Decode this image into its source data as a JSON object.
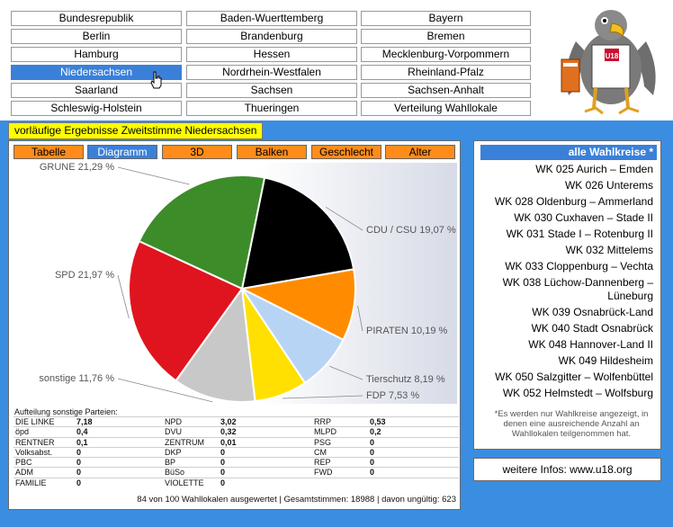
{
  "nav": {
    "row1": [
      "Bundesrepublik",
      "Baden-Wuerttemberg",
      "Bayern"
    ],
    "row2": [
      "Berlin",
      "Brandenburg",
      "Bremen"
    ],
    "row3": [
      "Hamburg",
      "Hessen",
      "Mecklenburg-Vorpommern"
    ],
    "row4": [
      "Niedersachsen",
      "Nordrhein-Westfalen",
      "Rheinland-Pfalz"
    ],
    "row5": [
      "Saarland",
      "Sachsen",
      "Sachsen-Anhalt"
    ],
    "row6": [
      "Schleswig-Holstein",
      "Thueringen",
      "Verteilung Wahllokale"
    ],
    "active": "Niedersachsen"
  },
  "mascot": {
    "badge": "U18"
  },
  "title": "vorläufige Ergebnisse Zweitstimme Niedersachsen",
  "tabs": [
    "Tabelle",
    "Diagramm",
    "3D",
    "Balken",
    "Geschlecht",
    "Alter"
  ],
  "active_tab": "Diagramm",
  "chart_data": {
    "type": "pie",
    "slices": [
      {
        "label": "CDU / CSU 19,07 %",
        "value": 19.07,
        "color": "#000000"
      },
      {
        "label": "PIRATEN 10,19 %",
        "value": 10.19,
        "color": "#ff8c00"
      },
      {
        "label": "Tierschutz 8,19 %",
        "value": 8.19,
        "color": "#b8d4f5"
      },
      {
        "label": "FDP 7,53 %",
        "value": 7.53,
        "color": "#ffe000"
      },
      {
        "label": "sonstige 11,76 %",
        "value": 11.76,
        "color": "#c8c8c8"
      },
      {
        "label": "SPD 21,97 %",
        "value": 21.97,
        "color": "#e0141e"
      },
      {
        "label": "GRÜNE 21,29 %",
        "value": 21.29,
        "color": "#3d8c2a"
      }
    ]
  },
  "others": {
    "heading": "Aufteilung sonstige Parteien:",
    "columns": [
      [
        [
          "DIE LINKE",
          "7,18"
        ],
        [
          "öpd",
          "0,4"
        ],
        [
          "RENTNER",
          "0,1"
        ],
        [
          "Volksabst.",
          "0"
        ],
        [
          "PBC",
          "0"
        ],
        [
          "ADM",
          "0"
        ],
        [
          "FAMILIE",
          "0"
        ]
      ],
      [
        [
          "NPD",
          "3,02"
        ],
        [
          "DVU",
          "0,32"
        ],
        [
          "ZENTRUM",
          "0,01"
        ],
        [
          "DKP",
          "0"
        ],
        [
          "BP",
          "0"
        ],
        [
          "BüSo",
          "0"
        ],
        [
          "VIOLETTE",
          "0"
        ]
      ],
      [
        [
          "RRP",
          "0,53"
        ],
        [
          "MLPD",
          "0,2"
        ],
        [
          "PSG",
          "0"
        ],
        [
          "CM",
          "0"
        ],
        [
          "REP",
          "0"
        ],
        [
          "FWD",
          "0"
        ]
      ]
    ]
  },
  "summary": "84 von 100 Wahllokalen ausgewertet | Gesamtstimmen: 18988 | davon ungültig: 623",
  "wahlkreise": {
    "head": "alle Wahlkreise *",
    "items": [
      "WK 025 Aurich – Emden",
      "WK 026 Unterems",
      "WK 028 Oldenburg – Ammerland",
      "WK 030 Cuxhaven – Stade II",
      "WK 031 Stade I – Rotenburg II",
      "WK 032 Mittelems",
      "WK 033 Cloppenburg – Vechta",
      "WK 038 Lüchow-Dannenberg –",
      "Lüneburg",
      "WK 039 Osnabrück-Land",
      "WK 040 Stadt Osnabrück",
      "WK 048 Hannover-Land II",
      "WK 049 Hildesheim",
      "WK 050 Salzgitter – Wolfenbüttel",
      "WK 052 Helmstedt – Wolfsburg"
    ],
    "note": "*Es werden nur Wahlkreise angezeigt, in denen eine ausreichende Anzahl an Wahllokalen teilgenommen hat."
  },
  "info": "weitere Infos: www.u18.org"
}
